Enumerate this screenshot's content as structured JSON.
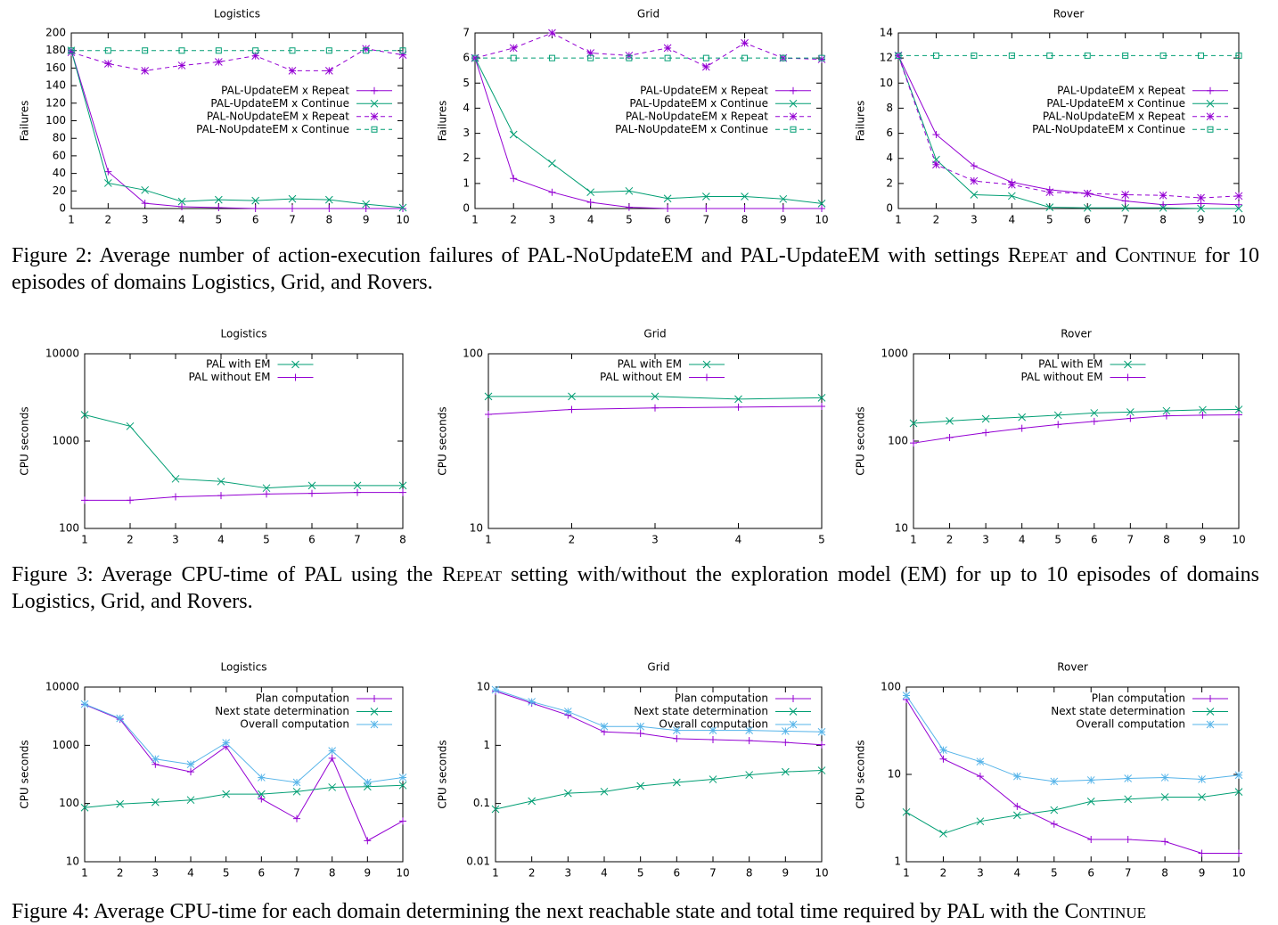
{
  "chart_data": [
    {
      "type": "line",
      "title": "Logistics",
      "ylabel": "Failures",
      "legend": "center-right",
      "log": false,
      "x": [
        1,
        2,
        3,
        4,
        5,
        6,
        7,
        8,
        9,
        10
      ],
      "xlim": [
        1,
        10
      ],
      "xticks": [
        1,
        2,
        3,
        4,
        5,
        6,
        7,
        8,
        9,
        10
      ],
      "ylim": [
        0,
        200
      ],
      "yticks": [
        0,
        20,
        40,
        60,
        80,
        100,
        120,
        140,
        160,
        180,
        200
      ],
      "series": [
        {
          "name": "PAL-UpdateEM x Repeat",
          "color": "#9400d3",
          "dash": false,
          "marker": "+",
          "values": [
            180,
            42,
            6,
            2,
            1,
            0,
            0,
            0,
            0,
            0
          ]
        },
        {
          "name": "PAL-UpdateEM x Continue",
          "color": "#009e73",
          "dash": false,
          "marker": "x",
          "values": [
            180,
            29,
            21,
            8,
            10,
            9,
            11,
            10,
            5,
            1
          ]
        },
        {
          "name": "PAL-NoUpdateEM x Repeat",
          "color": "#9400d3",
          "dash": true,
          "marker": "*",
          "values": [
            178,
            165,
            157,
            163,
            167,
            174,
            157,
            157,
            182,
            175
          ]
        },
        {
          "name": "PAL-NoUpdateEM x Continue",
          "color": "#009e73",
          "dash": true,
          "marker": "square",
          "values": [
            180,
            180,
            180,
            180,
            180,
            180,
            180,
            180,
            180,
            180
          ]
        }
      ]
    },
    {
      "type": "line",
      "title": "Grid",
      "ylabel": "Failures",
      "legend": "center-right",
      "log": false,
      "x": [
        1,
        2,
        3,
        4,
        5,
        6,
        7,
        8,
        9,
        10
      ],
      "xlim": [
        1,
        10
      ],
      "xticks": [
        1,
        2,
        3,
        4,
        5,
        6,
        7,
        8,
        9,
        10
      ],
      "ylim": [
        0,
        7
      ],
      "yticks": [
        0,
        1,
        2,
        3,
        4,
        5,
        6,
        7
      ],
      "series": [
        {
          "name": "PAL-UpdateEM x Repeat",
          "color": "#9400d3",
          "dash": false,
          "marker": "+",
          "values": [
            6,
            1.2,
            0.65,
            0.25,
            0.05,
            0,
            0,
            0,
            0,
            0
          ]
        },
        {
          "name": "PAL-UpdateEM x Continue",
          "color": "#009e73",
          "dash": false,
          "marker": "x",
          "values": [
            6,
            2.95,
            1.8,
            0.65,
            0.7,
            0.4,
            0.48,
            0.48,
            0.38,
            0.2
          ]
        },
        {
          "name": "PAL-NoUpdateEM x Repeat",
          "color": "#9400d3",
          "dash": true,
          "marker": "*",
          "values": [
            6,
            6.4,
            7,
            6.2,
            6.1,
            6.4,
            5.65,
            6.6,
            6,
            5.95
          ]
        },
        {
          "name": "PAL-NoUpdateEM x Continue",
          "color": "#009e73",
          "dash": true,
          "marker": "square",
          "values": [
            6,
            6,
            6,
            6,
            6,
            6,
            6,
            6,
            6,
            6
          ]
        }
      ]
    },
    {
      "type": "line",
      "title": "Rover",
      "ylabel": "Failures",
      "legend": "center-right",
      "log": false,
      "x": [
        1,
        2,
        3,
        4,
        5,
        6,
        7,
        8,
        9,
        10
      ],
      "xlim": [
        1,
        10
      ],
      "xticks": [
        1,
        2,
        3,
        4,
        5,
        6,
        7,
        8,
        9,
        10
      ],
      "ylim": [
        0,
        14
      ],
      "yticks": [
        0,
        2,
        4,
        6,
        8,
        10,
        12,
        14
      ],
      "series": [
        {
          "name": "PAL-UpdateEM x Repeat",
          "color": "#9400d3",
          "dash": false,
          "marker": "+",
          "values": [
            12.2,
            5.9,
            3.4,
            2.1,
            1.5,
            1.2,
            0.6,
            0.3,
            0.4,
            0.3
          ]
        },
        {
          "name": "PAL-UpdateEM x Continue",
          "color": "#009e73",
          "dash": false,
          "marker": "x",
          "values": [
            12.2,
            3.9,
            1.1,
            1,
            0.1,
            0.05,
            0.05,
            0.05,
            0,
            0
          ]
        },
        {
          "name": "PAL-NoUpdateEM x Repeat",
          "color": "#9400d3",
          "dash": true,
          "marker": "*",
          "values": [
            12.2,
            3.5,
            2.2,
            1.9,
            1.3,
            1.2,
            1.1,
            1.05,
            0.85,
            1
          ]
        },
        {
          "name": "PAL-NoUpdateEM x Continue",
          "color": "#009e73",
          "dash": true,
          "marker": "square",
          "values": [
            12.2,
            12.2,
            12.2,
            12.2,
            12.2,
            12.2,
            12.2,
            12.2,
            12.2,
            12.2
          ]
        }
      ]
    },
    {
      "type": "line",
      "title": "Logistics",
      "ylabel": "CPU seconds",
      "legend": "top-center",
      "log": true,
      "x": [
        1,
        2,
        3,
        4,
        5,
        6,
        7,
        8
      ],
      "xlim": [
        1,
        8
      ],
      "xticks": [
        1,
        2,
        3,
        4,
        5,
        6,
        7,
        8
      ],
      "ylim": [
        100,
        10000
      ],
      "yticks": [
        100,
        1000,
        10000
      ],
      "series": [
        {
          "name": "PAL with EM",
          "color": "#009e73",
          "dash": false,
          "marker": "x",
          "values": [
            2000,
            1480,
            370,
            345,
            290,
            310,
            310,
            310
          ]
        },
        {
          "name": "PAL without EM",
          "color": "#9400d3",
          "dash": false,
          "marker": "+",
          "values": [
            210,
            210,
            230,
            238,
            248,
            252,
            258,
            258
          ]
        }
      ]
    },
    {
      "type": "line",
      "title": "Grid",
      "ylabel": "CPU seconds",
      "legend": "top-center",
      "log": true,
      "x": [
        1,
        2,
        3,
        4,
        5
      ],
      "xlim": [
        1,
        5
      ],
      "xticks": [
        1,
        2,
        3,
        4,
        5
      ],
      "ylim": [
        10,
        100
      ],
      "yticks": [
        10,
        100
      ],
      "series": [
        {
          "name": "PAL with EM",
          "color": "#009e73",
          "dash": false,
          "marker": "x",
          "values": [
            57,
            57,
            57,
            55,
            56
          ]
        },
        {
          "name": "PAL without EM",
          "color": "#9400d3",
          "dash": false,
          "marker": "+",
          "values": [
            45,
            48,
            49,
            49.5,
            50
          ]
        }
      ]
    },
    {
      "type": "line",
      "title": "Rover",
      "ylabel": "CPU seconds",
      "legend": "top-center",
      "log": true,
      "x": [
        1,
        2,
        3,
        4,
        5,
        6,
        7,
        8,
        9,
        10
      ],
      "xlim": [
        1,
        10
      ],
      "xticks": [
        1,
        2,
        3,
        4,
        5,
        6,
        7,
        8,
        9,
        10
      ],
      "ylim": [
        10,
        1000
      ],
      "yticks": [
        10,
        100,
        1000
      ],
      "series": [
        {
          "name": "PAL with EM",
          "color": "#009e73",
          "dash": false,
          "marker": "x",
          "values": [
            160,
            170,
            180,
            188,
            198,
            210,
            215,
            222,
            228,
            230
          ]
        },
        {
          "name": "PAL without EM",
          "color": "#9400d3",
          "dash": false,
          "marker": "+",
          "values": [
            95,
            110,
            125,
            140,
            155,
            168,
            182,
            195,
            198,
            200
          ]
        }
      ]
    },
    {
      "type": "line",
      "title": "Logistics",
      "ylabel": "CPU seconds",
      "legend": "top-right",
      "log": true,
      "x": [
        1,
        2,
        3,
        4,
        5,
        6,
        7,
        8,
        9,
        10
      ],
      "xlim": [
        1,
        10
      ],
      "xticks": [
        1,
        2,
        3,
        4,
        5,
        6,
        7,
        8,
        9,
        10
      ],
      "ylim": [
        10,
        10000
      ],
      "yticks": [
        10,
        100,
        1000,
        10000
      ],
      "series": [
        {
          "name": "Plan computation",
          "color": "#9400d3",
          "dash": false,
          "marker": "+",
          "values": [
            5000,
            2800,
            470,
            350,
            950,
            120,
            55,
            600,
            23,
            50
          ]
        },
        {
          "name": "Next state determination",
          "color": "#009e73",
          "dash": false,
          "marker": "x",
          "values": [
            85,
            98,
            105,
            115,
            145,
            145,
            160,
            190,
            195,
            205
          ]
        },
        {
          "name": "Overall computation",
          "color": "#56b4e9",
          "dash": false,
          "marker": "*",
          "values": [
            5100,
            2900,
            580,
            470,
            1100,
            280,
            230,
            800,
            230,
            280
          ]
        }
      ]
    },
    {
      "type": "line",
      "title": "Grid",
      "ylabel": "CPU seconds",
      "legend": "top-right",
      "log": true,
      "x": [
        1,
        2,
        3,
        4,
        5,
        6,
        7,
        8,
        9,
        10
      ],
      "xlim": [
        1,
        10
      ],
      "xticks": [
        1,
        2,
        3,
        4,
        5,
        6,
        7,
        8,
        9,
        10
      ],
      "ylim": [
        0.01,
        10
      ],
      "yticks": [
        0.01,
        0.1,
        1,
        10
      ],
      "series": [
        {
          "name": "Plan computation",
          "color": "#9400d3",
          "dash": false,
          "marker": "+",
          "values": [
            8.5,
            5.3,
            3.3,
            1.7,
            1.6,
            1.3,
            1.25,
            1.2,
            1.12,
            1.02
          ]
        },
        {
          "name": "Next state determination",
          "color": "#009e73",
          "dash": false,
          "marker": "x",
          "values": [
            0.08,
            0.11,
            0.15,
            0.16,
            0.2,
            0.23,
            0.26,
            0.31,
            0.35,
            0.37
          ]
        },
        {
          "name": "Overall computation",
          "color": "#56b4e9",
          "dash": false,
          "marker": "*",
          "values": [
            9,
            5.6,
            3.8,
            2.1,
            2.1,
            1.8,
            1.8,
            1.8,
            1.75,
            1.7
          ]
        }
      ]
    },
    {
      "type": "line",
      "title": "Rover",
      "ylabel": "CPU seconds",
      "legend": "top-right",
      "log": true,
      "x": [
        1,
        2,
        3,
        4,
        5,
        6,
        7,
        8,
        9,
        10
      ],
      "xlim": [
        1,
        10
      ],
      "xticks": [
        1,
        2,
        3,
        4,
        5,
        6,
        7,
        8,
        9,
        10
      ],
      "ylim": [
        1,
        100
      ],
      "yticks": [
        1,
        10,
        100
      ],
      "series": [
        {
          "name": "Plan computation",
          "color": "#9400d3",
          "dash": false,
          "marker": "+",
          "values": [
            72,
            15,
            9.5,
            4.3,
            2.7,
            1.8,
            1.8,
            1.7,
            1.25,
            1.25
          ]
        },
        {
          "name": "Next state determination",
          "color": "#009e73",
          "dash": false,
          "marker": "x",
          "values": [
            3.7,
            2.1,
            2.9,
            3.4,
            3.9,
            4.9,
            5.2,
            5.5,
            5.5,
            6.3
          ]
        },
        {
          "name": "Overall computation",
          "color": "#56b4e9",
          "dash": false,
          "marker": "*",
          "values": [
            80,
            19,
            14,
            9.5,
            8.3,
            8.6,
            9,
            9.2,
            8.8,
            9.8
          ]
        }
      ]
    }
  ],
  "captions": [
    {
      "parts": [
        {
          "text": "Figure 2: Average number of action-execution failures of PAL-NoUpdateEM and PAL-UpdateEM with settings ",
          "small_caps": false
        },
        {
          "text": "Repeat",
          "small_caps": true
        },
        {
          "text": " and ",
          "small_caps": false
        },
        {
          "text": "Continue",
          "small_caps": true
        },
        {
          "text": " for 10 episodes of domains Logistics, Grid, and Rovers.",
          "small_caps": false
        }
      ]
    },
    {
      "parts": [
        {
          "text": "Figure 3: Average CPU-time of PAL using the ",
          "small_caps": false
        },
        {
          "text": "Repeat",
          "small_caps": true
        },
        {
          "text": " setting with/without the exploration model (EM) for up to 10 episodes of domains Logistics, Grid, and Rovers.",
          "small_caps": false
        }
      ]
    },
    {
      "parts": [
        {
          "text": "Figure 4: Average CPU-time for each domain determining the next reachable state and total time required by PAL with the ",
          "small_caps": false
        },
        {
          "text": "Continue",
          "small_caps": true
        }
      ]
    }
  ]
}
